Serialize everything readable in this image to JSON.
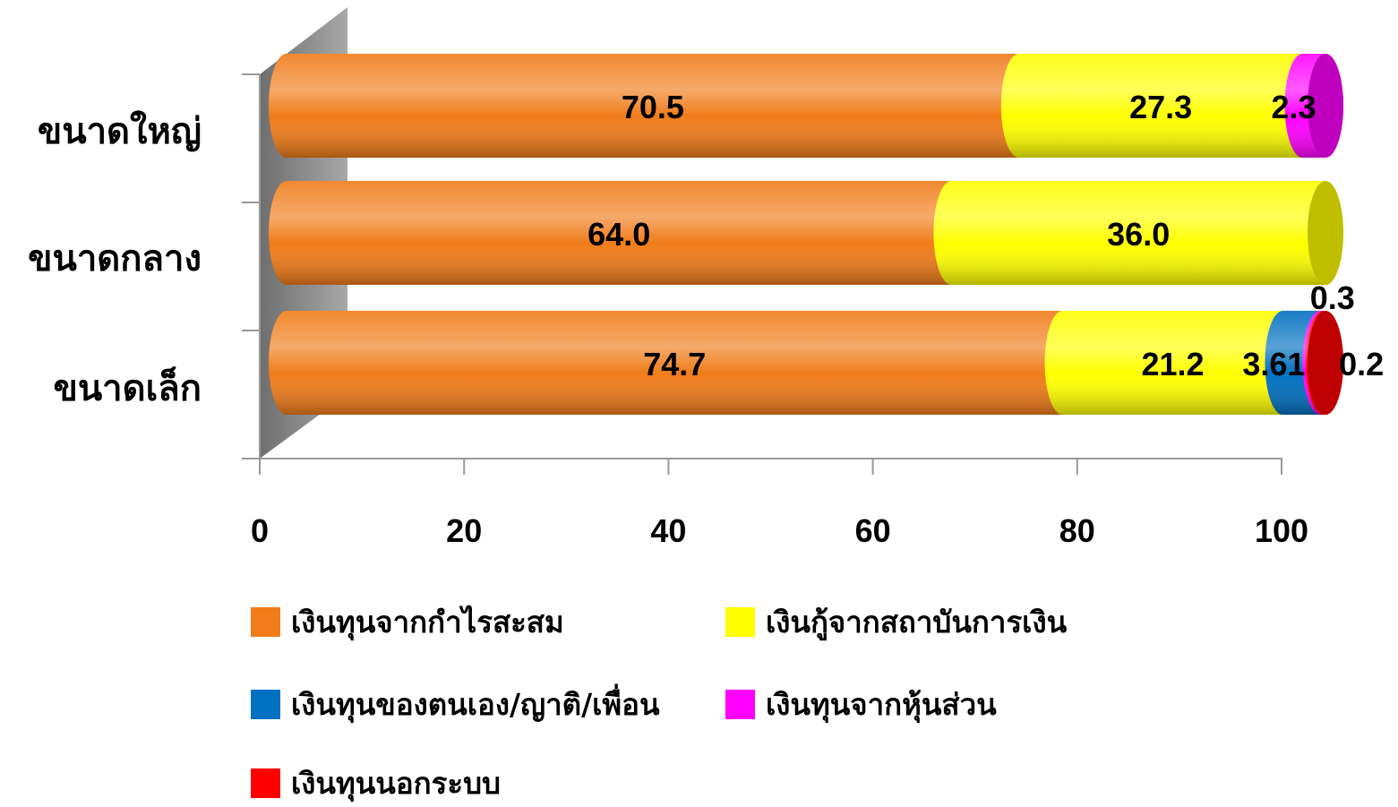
{
  "chart_data": {
    "type": "bar",
    "orientation": "horizontal",
    "stacked": true,
    "style": "3d-cylinder",
    "categories": [
      "ขนาดใหญ่",
      "ขนาดกลาง",
      "ขนาดเล็ก"
    ],
    "series": [
      {
        "name": "เงินทุนจากกำไรสะสม",
        "color": "#F07C1A",
        "values": [
          70.5,
          64.0,
          74.7
        ],
        "labels": [
          "70.5",
          "64.0",
          "74.7"
        ]
      },
      {
        "name": "เงินกู้จากสถาบันการเงิน",
        "color": "#FFFF00",
        "values": [
          27.3,
          36.0,
          21.2
        ],
        "labels": [
          "27.3",
          "36.0",
          "21.2"
        ]
      },
      {
        "name": "เงินทุนของตนเอง/ญาติ/เพื่อน",
        "color": "#0070C0",
        "values": [
          0,
          0,
          3.61
        ],
        "labels": [
          "",
          "",
          "3.61"
        ]
      },
      {
        "name": "เงินทุนจากหุ้นส่วน",
        "color": "#FF00FF",
        "values": [
          2.3,
          0,
          0.3
        ],
        "labels": [
          "2.3",
          "",
          "0.3"
        ]
      },
      {
        "name": "เงินทุนนอกระบบ",
        "color": "#FF0000",
        "values": [
          0,
          0,
          0.2
        ],
        "labels": [
          "",
          "",
          "0.2"
        ]
      }
    ],
    "xlim": [
      0,
      100
    ],
    "xticks": [
      "0",
      "20",
      "40",
      "60",
      "80",
      "100"
    ],
    "title": "",
    "xlabel": "",
    "ylabel": "",
    "grid": false,
    "legend_position": "bottom"
  }
}
